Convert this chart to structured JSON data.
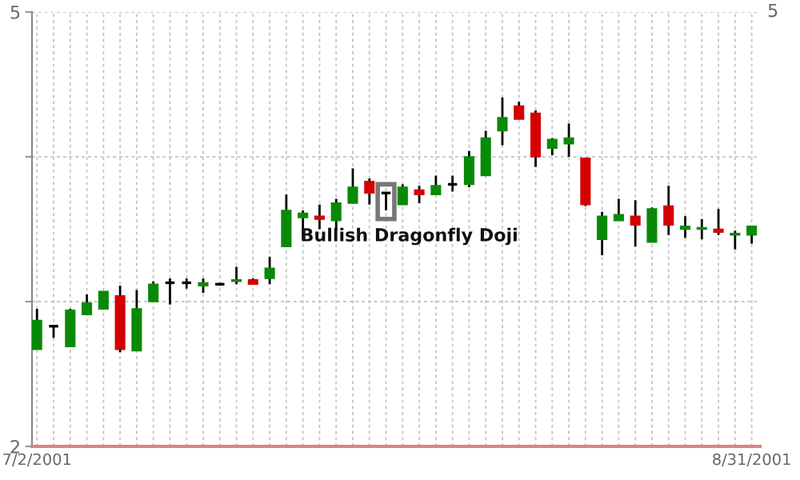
{
  "chart_data": {
    "type": "candlestick",
    "categories": [
      "7/2/2001",
      null,
      null,
      null,
      null,
      null,
      null,
      null,
      null,
      null,
      null,
      null,
      null,
      null,
      null,
      null,
      null,
      null,
      null,
      null,
      null,
      null,
      null,
      null,
      null,
      null,
      null,
      null,
      null,
      null,
      null,
      null,
      null,
      null,
      null,
      null,
      null,
      null,
      null,
      null,
      null,
      null,
      null,
      "8/31/2001"
    ],
    "ohlc": [
      [
        2.67,
        2.95,
        2.67,
        2.87
      ],
      [
        2.83,
        2.83,
        2.75,
        2.83
      ],
      [
        2.69,
        2.95,
        2.69,
        2.94
      ],
      [
        2.91,
        3.05,
        2.91,
        2.99
      ],
      [
        2.95,
        3.07,
        2.95,
        3.07
      ],
      [
        3.04,
        3.11,
        2.65,
        2.67
      ],
      [
        2.66,
        3.08,
        2.66,
        2.95
      ],
      [
        3.0,
        3.14,
        3.0,
        3.12
      ],
      [
        3.13,
        3.16,
        2.98,
        3.13
      ],
      [
        3.13,
        3.16,
        3.09,
        3.13
      ],
      [
        3.11,
        3.16,
        3.06,
        3.13
      ],
      [
        3.12,
        3.13,
        3.11,
        3.12
      ],
      [
        3.14,
        3.24,
        3.12,
        3.15
      ],
      [
        3.15,
        3.16,
        3.12,
        3.12
      ],
      [
        3.16,
        3.31,
        3.12,
        3.23
      ],
      [
        3.38,
        3.74,
        3.38,
        3.63
      ],
      [
        3.58,
        3.63,
        3.43,
        3.61
      ],
      [
        3.59,
        3.67,
        3.5,
        3.57
      ],
      [
        3.56,
        3.71,
        3.49,
        3.68
      ],
      [
        3.68,
        3.92,
        3.68,
        3.79
      ],
      [
        3.83,
        3.85,
        3.67,
        3.75
      ],
      [
        3.75,
        3.75,
        3.63,
        3.75
      ],
      [
        3.67,
        3.81,
        3.67,
        3.79
      ],
      [
        3.77,
        3.8,
        3.68,
        3.74
      ],
      [
        3.74,
        3.87,
        3.74,
        3.8
      ],
      [
        3.81,
        3.87,
        3.76,
        3.81
      ],
      [
        3.81,
        4.04,
        3.79,
        4.0
      ],
      [
        3.87,
        4.18,
        3.87,
        4.13
      ],
      [
        4.18,
        4.41,
        4.08,
        4.27
      ],
      [
        4.35,
        4.38,
        4.26,
        4.26
      ],
      [
        4.3,
        4.32,
        3.93,
        4.0
      ],
      [
        4.06,
        4.13,
        4.01,
        4.12
      ],
      [
        4.09,
        4.23,
        4.0,
        4.13
      ],
      [
        3.99,
        3.99,
        3.66,
        3.67
      ],
      [
        3.43,
        3.62,
        3.32,
        3.59
      ],
      [
        3.56,
        3.71,
        3.56,
        3.6
      ],
      [
        3.59,
        3.7,
        3.38,
        3.53
      ],
      [
        3.41,
        3.65,
        3.41,
        3.64
      ],
      [
        3.66,
        3.8,
        3.46,
        3.53
      ],
      [
        3.5,
        3.59,
        3.44,
        3.52
      ],
      [
        3.5,
        3.57,
        3.43,
        3.51
      ],
      [
        3.5,
        3.64,
        3.46,
        3.48
      ],
      [
        3.46,
        3.49,
        3.36,
        3.47
      ],
      [
        3.46,
        3.52,
        3.4,
        3.52
      ]
    ],
    "colors": [
      "#088a08",
      "#000000",
      "#088a08",
      "#088a08",
      "#088a08",
      "#d40000",
      "#088a08",
      "#088a08",
      "#000000",
      "#000000",
      "#088a08",
      "#000000",
      "#088a08",
      "#d40000",
      "#088a08",
      "#088a08",
      "#088a08",
      "#d40000",
      "#088a08",
      "#088a08",
      "#d40000",
      "#000000",
      "#088a08",
      "#d40000",
      "#088a08",
      "#000000",
      "#088a08",
      "#088a08",
      "#088a08",
      "#d40000",
      "#d40000",
      "#088a08",
      "#088a08",
      "#d40000",
      "#088a08",
      "#088a08",
      "#d40000",
      "#088a08",
      "#d40000",
      "#088a08",
      "#088a08",
      "#d40000",
      "#088a08",
      "#088a08"
    ],
    "ylim": [
      2,
      5
    ],
    "yticks": [
      5,
      {
        "value": 4,
        "label": null
      },
      {
        "value": 3,
        "label": null
      },
      2
    ],
    "grid": true,
    "annotations": [
      "Bullish Dragonfly Doji",
      "5"
    ]
  }
}
